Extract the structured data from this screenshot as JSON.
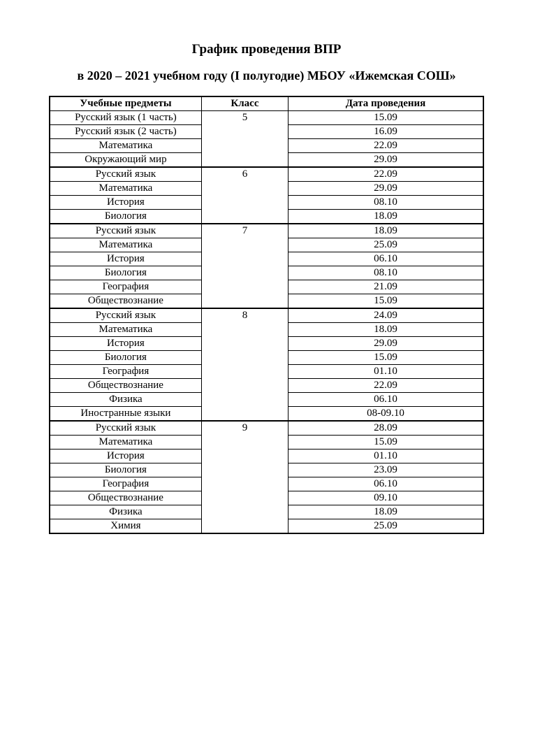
{
  "title": "График проведения ВПР",
  "subtitle": "в 2020 – 2021 учебном году (I полугодие) МБОУ «Ижемская СОШ»",
  "table": {
    "columns": [
      "Учебные предметы",
      "Класс",
      "Дата проведения"
    ],
    "column_widths": [
      "35%",
      "20%",
      "45%"
    ],
    "header_font_weight": "bold",
    "font_family": "Times New Roman",
    "border_color": "#000000",
    "outer_border_width": 2,
    "inner_border_width": 1,
    "group_border_width": 2,
    "background_color": "#ffffff",
    "text_color": "#000000",
    "groups": [
      {
        "class": "5",
        "rows": [
          {
            "subject": "Русский язык (1 часть)",
            "date": "15.09"
          },
          {
            "subject": "Русский язык (2 часть)",
            "date": "16.09"
          },
          {
            "subject": "Математика",
            "date": "22.09"
          },
          {
            "subject": "Окружающий мир",
            "date": "29.09"
          }
        ]
      },
      {
        "class": "6",
        "rows": [
          {
            "subject": "Русский язык",
            "date": "22.09"
          },
          {
            "subject": "Математика",
            "date": "29.09"
          },
          {
            "subject": "История",
            "date": "08.10"
          },
          {
            "subject": "Биология",
            "date": "18.09"
          }
        ]
      },
      {
        "class": "7",
        "rows": [
          {
            "subject": "Русский язык",
            "date": "18.09"
          },
          {
            "subject": "Математика",
            "date": "25.09"
          },
          {
            "subject": "История",
            "date": "06.10"
          },
          {
            "subject": "Биология",
            "date": "08.10"
          },
          {
            "subject": "География",
            "date": "21.09"
          },
          {
            "subject": "Обществознание",
            "date": "15.09"
          }
        ]
      },
      {
        "class": "8",
        "rows": [
          {
            "subject": "Русский язык",
            "date": "24.09"
          },
          {
            "subject": "Математика",
            "date": "18.09"
          },
          {
            "subject": "История",
            "date": "29.09"
          },
          {
            "subject": "Биология",
            "date": "15.09"
          },
          {
            "subject": "География",
            "date": "01.10"
          },
          {
            "subject": "Обществознание",
            "date": "22.09"
          },
          {
            "subject": "Физика",
            "date": "06.10"
          },
          {
            "subject": "Иностранные языки",
            "date": "08-09.10"
          }
        ]
      },
      {
        "class": "9",
        "rows": [
          {
            "subject": "Русский язык",
            "date": "28.09"
          },
          {
            "subject": "Математика",
            "date": "15.09"
          },
          {
            "subject": "История",
            "date": "01.10"
          },
          {
            "subject": "Биология",
            "date": "23.09"
          },
          {
            "subject": "География",
            "date": "06.10"
          },
          {
            "subject": "Обществознание",
            "date": "09.10"
          },
          {
            "subject": "Физика",
            "date": "18.09"
          },
          {
            "subject": "Химия",
            "date": "25.09"
          }
        ]
      }
    ]
  }
}
